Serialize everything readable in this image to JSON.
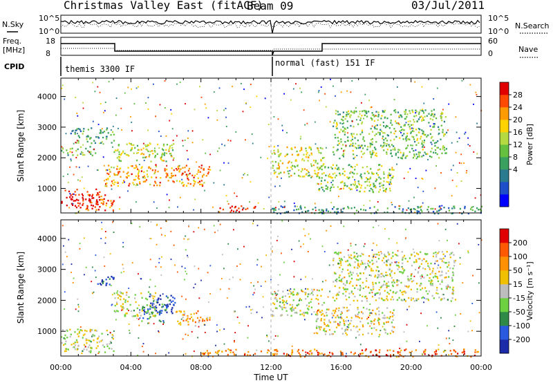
{
  "header": {
    "title": "Christmas Valley East (fitACF)",
    "beam": "Beam 09",
    "date": "03/Jul/2011"
  },
  "top_panels": {
    "nsky_label": "N.Sky",
    "nsky_ticks": [
      "10^5",
      "10^0"
    ],
    "nsearch_label": "N.Search",
    "nsearch_ticks": [
      "10^5",
      "10^0"
    ],
    "freq_label_line1": "Freq.",
    "freq_label_line2": "[MHz]",
    "freq_ticks": [
      "18",
      "8"
    ],
    "nave_label": "Nave",
    "nave_ticks": [
      "60",
      "0"
    ],
    "cpid_label": "CPID",
    "cpid_entries": [
      "themis 3300 IF",
      "normal (fast) 151 IF"
    ]
  },
  "chart_data": [
    {
      "type": "heatmap",
      "name": "power",
      "ylabel": "Slant Range [km]",
      "xlabel": "",
      "yticks": [
        "1000",
        "2000",
        "3000",
        "4000"
      ],
      "ylim": [
        200,
        4600
      ],
      "xlim": [
        0,
        24
      ],
      "colorbar_label": "Power [dB]",
      "colorbar_ticks": [
        "28",
        "24",
        "20",
        "16",
        "12",
        "8",
        "4"
      ],
      "colorbar_colors": [
        "#0000ff",
        "#1f4fc8",
        "#2a7a90",
        "#3aa060",
        "#66c040",
        "#b5d940",
        "#ffd200",
        "#ff9a00",
        "#ff4a00",
        "#e00000"
      ],
      "regions": [
        {
          "t0": 0.0,
          "t1": 2.5,
          "r0": 400,
          "r1": 1000,
          "level": 0.95
        },
        {
          "t0": 1.0,
          "t1": 3.0,
          "r0": 300,
          "r1": 700,
          "level": 0.85
        },
        {
          "t0": 2.5,
          "t1": 8.5,
          "r0": 1100,
          "r1": 1800,
          "level": 0.75
        },
        {
          "t0": 3.0,
          "t1": 6.5,
          "r0": 1900,
          "r1": 2500,
          "level": 0.55
        },
        {
          "t0": 0.0,
          "t1": 2.0,
          "r0": 2100,
          "r1": 2400,
          "level": 0.45
        },
        {
          "t0": 0.5,
          "t1": 3.0,
          "r0": 2500,
          "r1": 3000,
          "level": 0.35
        },
        {
          "t0": 9.0,
          "t1": 11.5,
          "r0": 250,
          "r1": 450,
          "level": 0.9
        },
        {
          "t0": 12.0,
          "t1": 15.0,
          "r0": 1400,
          "r1": 2400,
          "level": 0.6
        },
        {
          "t0": 15.5,
          "t1": 22.0,
          "r0": 2000,
          "r1": 3600,
          "level": 0.45
        },
        {
          "t0": 14.5,
          "t1": 19.0,
          "r0": 900,
          "r1": 1800,
          "level": 0.5
        },
        {
          "t0": 12.0,
          "t1": 24.0,
          "r0": 200,
          "r1": 450,
          "level": 0.3
        }
      ]
    },
    {
      "type": "heatmap",
      "name": "velocity",
      "ylabel": "Slant Range [km]",
      "xlabel": "Time UT",
      "xticks": [
        "00:00",
        "04:00",
        "08:00",
        "12:00",
        "16:00",
        "20:00",
        "00:00"
      ],
      "yticks": [
        "1000",
        "2000",
        "3000",
        "4000"
      ],
      "ylim": [
        200,
        4600
      ],
      "xlim": [
        0,
        24
      ],
      "colorbar_label": "Velocity [m s⁻¹]",
      "colorbar_ticks": [
        "200",
        "100",
        "50",
        "15",
        "-15",
        "-50",
        "-100",
        "-200"
      ],
      "colorbar_colors": [
        "#1c2ca8",
        "#2a5ae0",
        "#2f8a48",
        "#6cd040",
        "#bdbdbd",
        "#f0c000",
        "#ff9000",
        "#ff5a00",
        "#e00000"
      ],
      "regions": [
        {
          "t0": 0.0,
          "t1": 3.0,
          "r0": 300,
          "r1": 1100,
          "level": 0.5
        },
        {
          "t0": 3.0,
          "t1": 5.5,
          "r0": 1500,
          "r1": 2300,
          "level": 0.5
        },
        {
          "t0": 5.0,
          "t1": 6.5,
          "r0": 1600,
          "r1": 2200,
          "level": 0.05
        },
        {
          "t0": 6.5,
          "t1": 8.5,
          "r0": 1200,
          "r1": 1700,
          "level": 0.7
        },
        {
          "t0": 4.5,
          "t1": 6.0,
          "r0": 1300,
          "r1": 1900,
          "level": 0.25
        },
        {
          "t0": 2.0,
          "t1": 3.0,
          "r0": 2500,
          "r1": 2900,
          "level": 0.1
        },
        {
          "t0": 8.0,
          "t1": 12.0,
          "r0": 250,
          "r1": 450,
          "level": 0.75
        },
        {
          "t0": 12.0,
          "t1": 15.0,
          "r0": 1500,
          "r1": 2400,
          "level": 0.5
        },
        {
          "t0": 15.5,
          "t1": 22.5,
          "r0": 2000,
          "r1": 3600,
          "level": 0.5
        },
        {
          "t0": 14.5,
          "t1": 19.0,
          "r0": 900,
          "r1": 1800,
          "level": 0.55
        },
        {
          "t0": 12.0,
          "t1": 24.0,
          "r0": 200,
          "r1": 450,
          "level": 0.8
        }
      ]
    }
  ]
}
